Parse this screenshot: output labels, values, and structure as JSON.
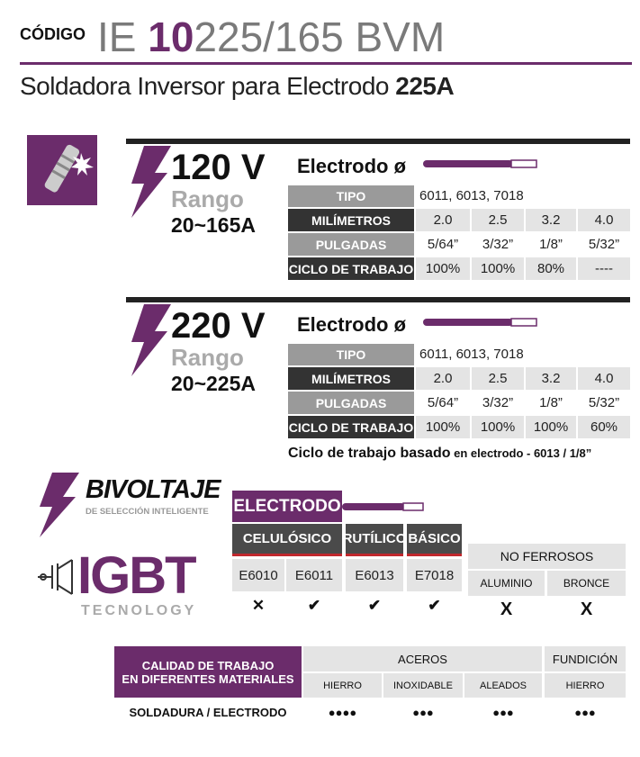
{
  "header": {
    "code_label": "CÓDIGO",
    "code_prefix": "IE ",
    "code_bold": "10",
    "code_rest": "225/165 BVM",
    "subtitle": "Soldadora Inversor para Electrodo ",
    "subtitle_bold": "225A"
  },
  "sections": [
    {
      "voltage": "120 V",
      "range_label": "Rango",
      "range": "20~165A",
      "electrode_title": "Electrodo ø",
      "rows": [
        [
          "TIPO",
          "6011, 6013, 7018"
        ],
        [
          "MILÍMETROS",
          "2.0",
          "2.5",
          "3.2",
          "4.0"
        ],
        [
          "PULGADAS",
          "5/64”",
          "3/32”",
          "1/8”",
          "5/32”"
        ],
        [
          "CICLO DE TRABAJO",
          "100%",
          "100%",
          "80%",
          "----"
        ]
      ]
    },
    {
      "voltage": "220 V",
      "range_label": "Rango",
      "range": "20~225A",
      "electrode_title": "Electrodo ø",
      "rows": [
        [
          "TIPO",
          "6011, 6013, 7018"
        ],
        [
          "MILÍMETROS",
          "2.0",
          "2.5",
          "3.2",
          "4.0"
        ],
        [
          "PULGADAS",
          "5/64”",
          "3/32”",
          "1/8”",
          "5/32”"
        ],
        [
          "CICLO DE TRABAJO",
          "100%",
          "100%",
          "100%",
          "60%"
        ]
      ]
    }
  ],
  "note": {
    "bold": "Ciclo de trabajo basado",
    "rest": " en electrodo - 6013 / 1/8”"
  },
  "features": {
    "bivoltaje": "BIVOLTAJE",
    "bivoltaje_sub": "DE SELECCIÓN INTELIGENTE",
    "igbt": "IGBT",
    "igbt_sub": "TECNOLOGY"
  },
  "electrode_compat": {
    "title": "ELECTRODO",
    "groups": [
      "CELULÓSICO",
      "RUTÍLICO",
      "BÁSICO"
    ],
    "codes": [
      "E6010",
      "E6011",
      "E6013",
      "E7018"
    ],
    "marks": [
      "✕",
      "✔",
      "✔",
      "✔"
    ],
    "non_ferrous": {
      "title": "NO FERROSOS",
      "materials": [
        "ALUMINIO",
        "BRONCE"
      ],
      "marks": [
        "X",
        "X"
      ]
    }
  },
  "quality": {
    "title_lines": [
      "CALIDAD DE TRABAJO",
      "EN DIFERENTES MATERIALES"
    ],
    "groups": [
      "ACEROS",
      "FUNDICIÓN"
    ],
    "columns": [
      "HIERRO",
      "INOXIDABLE",
      "ALEADOS",
      "HIERRO"
    ],
    "row_label": "SOLDADURA / ELECTRODO",
    "ratings": [
      "●●●●",
      "●●●",
      "●●●",
      "●●●"
    ]
  }
}
